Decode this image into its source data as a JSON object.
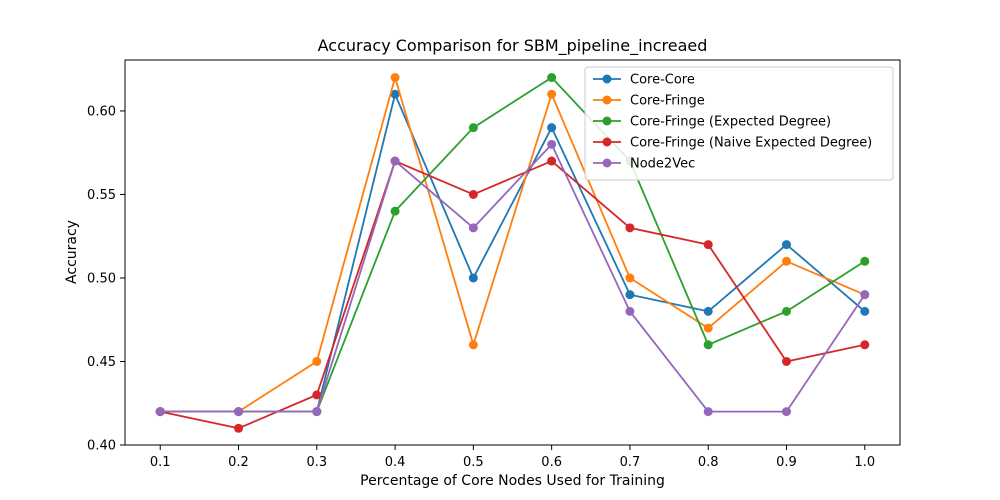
{
  "chart_data": {
    "type": "line",
    "title": "Accuracy Comparison for SBM_pipeline_increaed",
    "xlabel": "Percentage of Core Nodes Used for Training",
    "ylabel": "Accuracy",
    "x": [
      0.1,
      0.2,
      0.3,
      0.4,
      0.5,
      0.6,
      0.7,
      0.8,
      0.9,
      1.0
    ],
    "x_ticks": [
      "0.1",
      "0.2",
      "0.3",
      "0.4",
      "0.5",
      "0.6",
      "0.7",
      "0.8",
      "0.9",
      "1.0"
    ],
    "y_ticks": [
      "0.40",
      "0.45",
      "0.50",
      "0.55",
      "0.60"
    ],
    "xlim": [
      0.055,
      1.045
    ],
    "ylim": [
      0.4,
      0.6305
    ],
    "grid": false,
    "legend_position": "top-right",
    "markers": "circle",
    "series": [
      {
        "name": "Core-Core",
        "color": "#1f77b4",
        "values": [
          0.42,
          0.42,
          0.42,
          0.61,
          0.5,
          0.59,
          0.49,
          0.48,
          0.52,
          0.48
        ]
      },
      {
        "name": "Core-Fringe",
        "color": "#ff7f0e",
        "values": [
          0.42,
          0.42,
          0.45,
          0.62,
          0.46,
          0.61,
          0.5,
          0.47,
          0.51,
          0.49
        ]
      },
      {
        "name": "Core-Fringe (Expected Degree)",
        "color": "#2ca02c",
        "values": [
          0.42,
          0.42,
          0.42,
          0.54,
          0.59,
          0.62,
          0.57,
          0.46,
          0.48,
          0.51
        ]
      },
      {
        "name": "Core-Fringe (Naive Expected Degree)",
        "color": "#d62728",
        "values": [
          0.42,
          0.41,
          0.43,
          0.57,
          0.55,
          0.57,
          0.53,
          0.52,
          0.45,
          0.46
        ]
      },
      {
        "name": "Node2Vec",
        "color": "#9467bd",
        "values": [
          0.42,
          0.42,
          0.42,
          0.57,
          0.53,
          0.58,
          0.48,
          0.42,
          0.42,
          0.49
        ]
      }
    ]
  }
}
